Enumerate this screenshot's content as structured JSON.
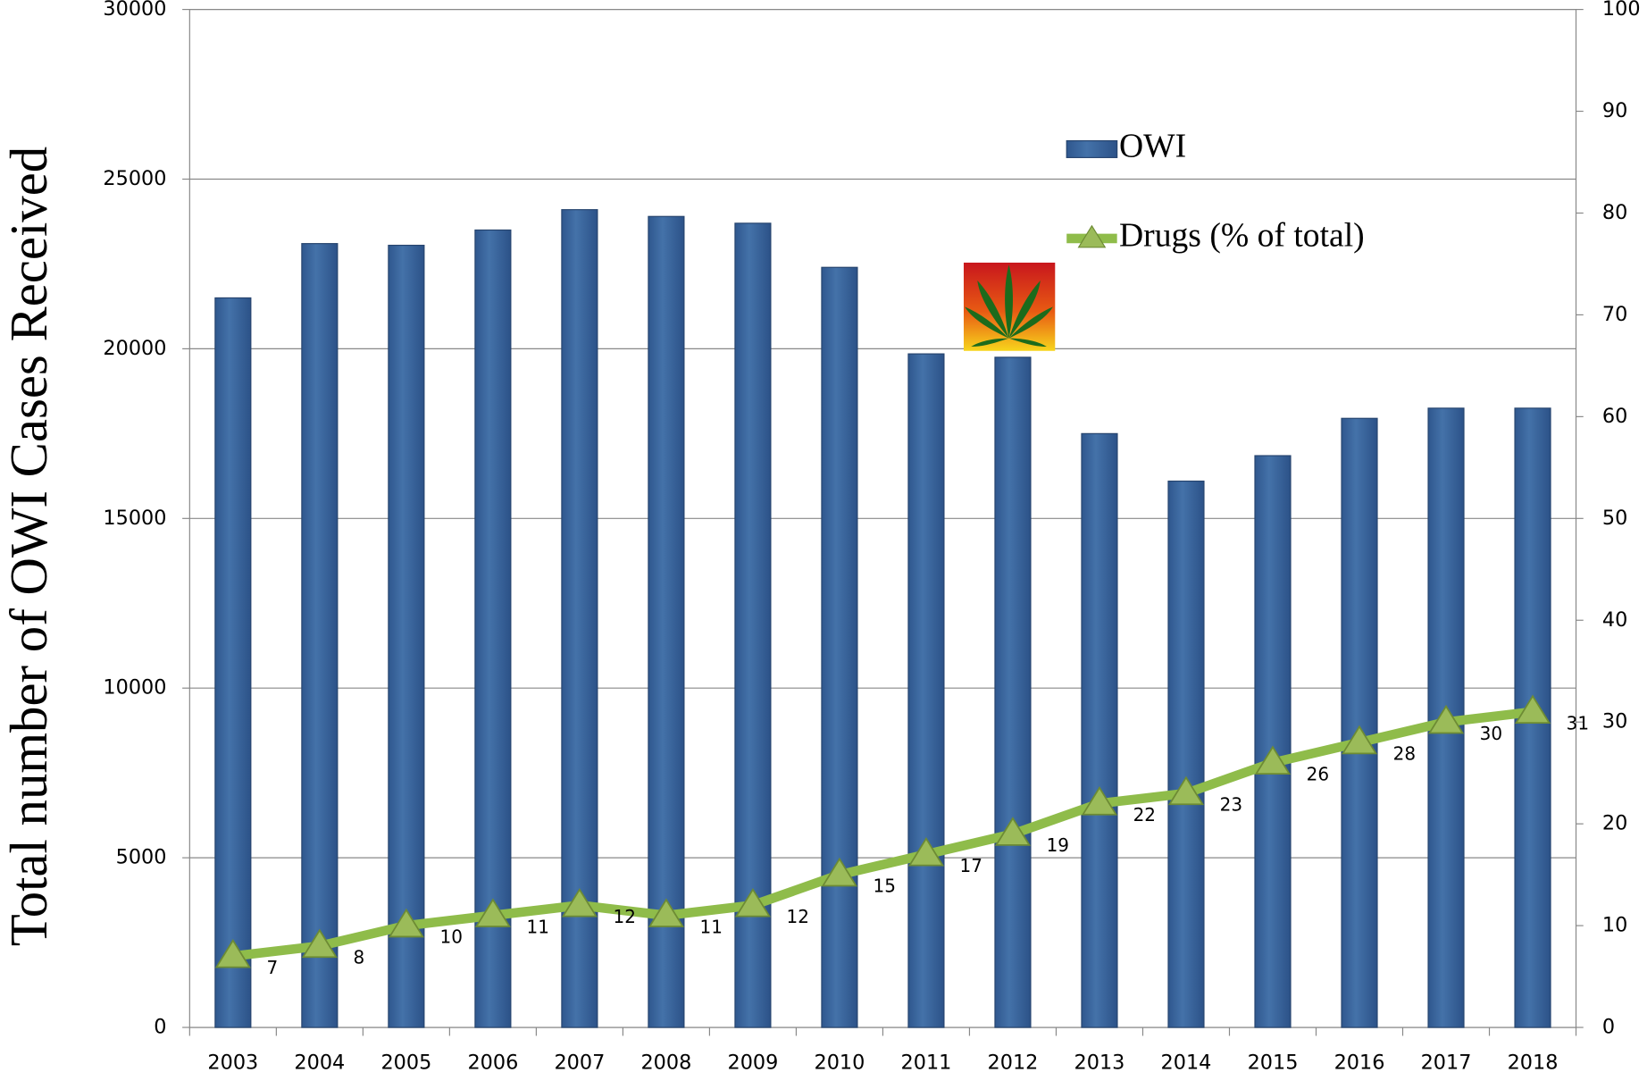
{
  "chart_data": {
    "type": "bar",
    "ylabel": "Total number of OWI Cases Received",
    "categories": [
      "2003",
      "2004",
      "2005",
      "2006",
      "2007",
      "2008",
      "2009",
      "2010",
      "2011",
      "2012",
      "2013",
      "2014",
      "2015",
      "2016",
      "2017",
      "2018"
    ],
    "series": [
      {
        "name": "OWI",
        "type": "bar",
        "color": "#3c66a0",
        "values": [
          21500,
          23100,
          23050,
          23500,
          24100,
          23900,
          23700,
          22400,
          19850,
          19750,
          17500,
          16100,
          16850,
          17950,
          18250,
          18250
        ]
      },
      {
        "name": "Drugs (% of total)",
        "type": "line",
        "axis": "y2",
        "color": "#8fbc4a",
        "values": [
          7,
          8,
          10,
          11,
          12,
          11,
          12,
          15,
          17,
          19,
          22,
          23,
          26,
          28,
          30,
          31
        ]
      }
    ],
    "ylim": [
      0,
      30000
    ],
    "yticks": [
      0,
      5000,
      10000,
      15000,
      20000,
      25000,
      30000
    ],
    "y2lim": [
      0,
      100
    ],
    "y2ticks": [
      0,
      10,
      20,
      30,
      40,
      50,
      60,
      70,
      80,
      90,
      100
    ],
    "grid": true,
    "legend": "upper right"
  }
}
